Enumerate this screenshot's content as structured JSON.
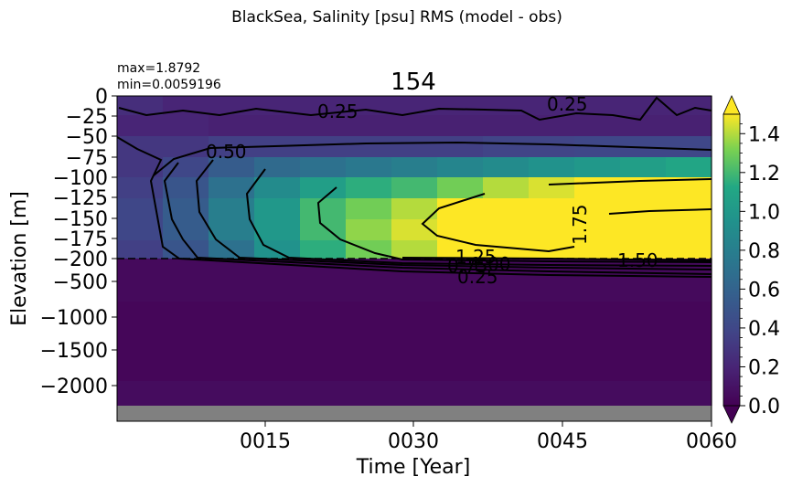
{
  "suptitle": "BlackSea, Salinity [psu] RMS (model - obs)",
  "title": "154",
  "stats": {
    "max": "max=1.8792",
    "min": "min=0.0059196"
  },
  "chart_data": {
    "type": "heatmap",
    "title": "154",
    "xlabel": "Time [Year]",
    "ylabel": "Elevation [m]",
    "x_ticks": [
      "0015",
      "0030",
      "0045",
      "0060"
    ],
    "y_ticks_upper": [
      "0",
      "−25",
      "−50",
      "−75",
      "−100",
      "−125",
      "−150",
      "−175",
      "−200"
    ],
    "y_ticks_lower": [
      "−500",
      "−1000",
      "−1500",
      "−2000"
    ],
    "split_depth_m": -200,
    "colorbar": {
      "colormap": "viridis",
      "range": [
        0.0,
        1.5
      ],
      "ticks": [
        "0.0",
        "0.2",
        "0.4",
        "0.6",
        "0.8",
        "1.0",
        "1.2",
        "1.4"
      ],
      "extend": "both"
    },
    "contour_labels": [
      "0.25",
      "0.25",
      "0.50",
      "1.75",
      "1.25",
      "1.50",
      "1.00",
      "0.75",
      "0.50",
      "0.25"
    ],
    "depth_bands_m": [
      -12,
      -37,
      -62,
      -87,
      -112,
      -137,
      -162,
      -187,
      -300,
      -700,
      -1200,
      -1700,
      -2100
    ],
    "years": [
      1,
      6,
      11,
      16,
      21,
      26,
      31,
      36,
      41,
      46,
      51,
      56,
      60
    ],
    "rms_values": [
      [
        0.25,
        0.2,
        0.2,
        0.2,
        0.2,
        0.2,
        0.2,
        0.2,
        0.2,
        0.2,
        0.2,
        0.2,
        0.2
      ],
      [
        0.2,
        0.2,
        0.18,
        0.18,
        0.18,
        0.18,
        0.18,
        0.18,
        0.18,
        0.18,
        0.18,
        0.18,
        0.18
      ],
      [
        0.3,
        0.3,
        0.35,
        0.35,
        0.35,
        0.35,
        0.35,
        0.35,
        0.38,
        0.38,
        0.4,
        0.4,
        0.4
      ],
      [
        0.3,
        0.4,
        0.55,
        0.65,
        0.7,
        0.75,
        0.8,
        0.85,
        0.9,
        0.95,
        1.0,
        1.05,
        1.1
      ],
      [
        0.35,
        0.5,
        0.7,
        0.9,
        1.05,
        1.15,
        1.2,
        1.3,
        1.4,
        1.45,
        1.5,
        1.55,
        1.6
      ],
      [
        0.4,
        0.55,
        0.8,
        1.0,
        1.2,
        1.3,
        1.4,
        1.55,
        1.7,
        1.8,
        1.85,
        1.85,
        1.85
      ],
      [
        0.4,
        0.55,
        0.8,
        1.0,
        1.2,
        1.35,
        1.45,
        1.6,
        1.75,
        1.85,
        1.85,
        1.85,
        1.85
      ],
      [
        0.35,
        0.5,
        0.7,
        0.95,
        1.15,
        1.3,
        1.4,
        1.5,
        1.6,
        1.7,
        1.75,
        1.8,
        1.8
      ],
      [
        0.05,
        0.05,
        0.05,
        0.05,
        0.05,
        0.05,
        0.05,
        0.05,
        0.05,
        0.05,
        0.05,
        0.05,
        0.05
      ],
      [
        0.03,
        0.03,
        0.03,
        0.03,
        0.03,
        0.03,
        0.03,
        0.03,
        0.03,
        0.03,
        0.03,
        0.03,
        0.03
      ],
      [
        0.03,
        0.03,
        0.03,
        0.03,
        0.03,
        0.03,
        0.03,
        0.03,
        0.03,
        0.03,
        0.03,
        0.03,
        0.03
      ],
      [
        0.06,
        0.06,
        0.06,
        0.06,
        0.06,
        0.06,
        0.06,
        0.06,
        0.06,
        0.06,
        0.06,
        0.06,
        0.06
      ],
      [
        0.15,
        0.15,
        0.15,
        0.15,
        0.15,
        0.15,
        0.15,
        0.15,
        0.15,
        0.15,
        0.15,
        0.15,
        0.15
      ]
    ],
    "grid": false
  },
  "colors": {
    "nodata": "#808080"
  }
}
